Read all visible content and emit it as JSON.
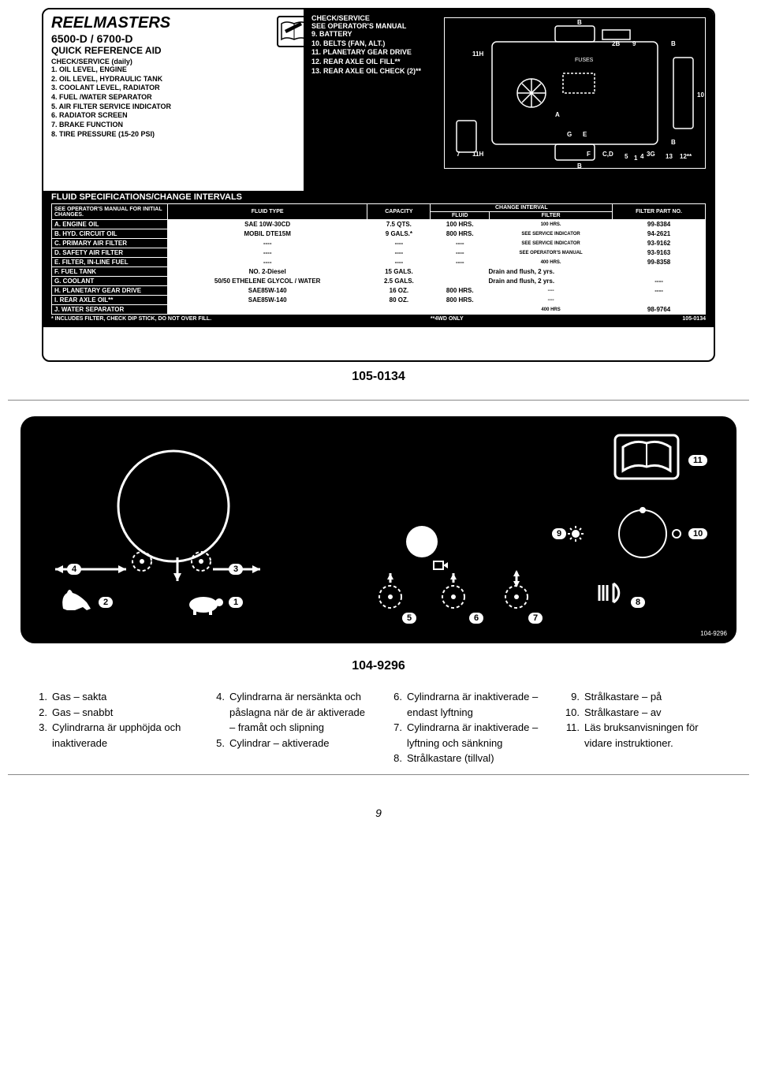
{
  "decal1": {
    "title": "REELMASTERS",
    "model": "6500-D / 6700-D",
    "subtitle": "QUICK REFERENCE AID",
    "daily_title": "CHECK/SERVICE (daily)",
    "daily": [
      "1. OIL LEVEL, ENGINE",
      "2. OIL LEVEL, HYDRAULIC TANK",
      "3. COOLANT LEVEL, RADIATOR",
      "4. FUEL /WATER SEPARATOR",
      "5. AIR FILTER SERVICE INDICATOR",
      "6. RADIATOR SCREEN",
      "7. BRAKE FUNCTION",
      "8. TIRE PRESSURE (15-20 PSI)"
    ],
    "service_title": "CHECK/SERVICE",
    "service_sub": "SEE OPERATOR'S MANUAL",
    "service": [
      "9. BATTERY",
      "10. BELTS (FAN, ALT.)",
      "11. PLANETARY GEAR DRIVE",
      "12. REAR AXLE OIL FILL**",
      "13. REAR AXLE OIL CHECK (2)**"
    ],
    "fluid_title": "FLUID SPECIFICATIONS/CHANGE INTERVALS",
    "headers": {
      "c0": "SEE OPERATOR'S MANUAL FOR INITIAL CHANGES.",
      "c1": "FLUID TYPE",
      "c2": "CAPACITY",
      "c3": "CHANGE INTERVAL",
      "c3a": "FLUID",
      "c3b": "FILTER",
      "c4": "FILTER PART NO."
    },
    "rows": [
      {
        "l": "A. ENGINE OIL",
        "t": "SAE 10W-30CD",
        "c": "7.5 QTS.",
        "f": "100 HRS.",
        "fi": "100 HRS.",
        "p": "99-8384"
      },
      {
        "l": "B. HYD. CIRCUIT OIL",
        "t": "MOBIL DTE15M",
        "c": "9 GALS.*",
        "f": "800 HRS.",
        "fi": "SEE SERVICE INDICATOR",
        "p": "94-2621"
      },
      {
        "l": "C. PRIMARY AIR FILTER",
        "t": "----",
        "c": "----",
        "f": "----",
        "fi": "SEE SERVICE INDICATOR",
        "p": "93-9162"
      },
      {
        "l": "D. SAFETY AIR FILTER",
        "t": "----",
        "c": "----",
        "f": "----",
        "fi": "SEE OPERATOR'S MANUAL",
        "p": "93-9163"
      },
      {
        "l": "E. FILTER, IN-LINE FUEL",
        "t": "----",
        "c": "----",
        "f": "----",
        "fi": "400 HRS.",
        "p": "99-8358"
      },
      {
        "l": "F. FUEL TANK",
        "t": "NO. 2-Diesel",
        "c": "15 GALS.",
        "span": "Drain and flush, 2 yrs.",
        "p": ""
      },
      {
        "l": "G. COOLANT",
        "t": "50/50 ETHELENE GLYCOL / WATER",
        "c": "2.5 GALS.",
        "span": "Drain and flush, 2 yrs.",
        "p": "----"
      },
      {
        "l": "H. PLANETARY GEAR DRIVE",
        "t": "SAE85W-140",
        "c": "16 OZ.",
        "f": "800 HRS.",
        "fi": "----",
        "p": "----"
      },
      {
        "l": "I. REAR AXLE OIL**",
        "t": "SAE85W-140",
        "c": "80 OZ.",
        "f": "800 HRS.",
        "fi": "----",
        "p": ""
      },
      {
        "l": "J. WATER SEPARATOR",
        "t": "",
        "c": "",
        "f": "",
        "fi": "400 HRS",
        "p": "98-9764"
      }
    ],
    "footnote_left": "* INCLUDES FILTER, CHECK DIP STICK, DO NOT OVER FILL.",
    "footnote_mid": "**4WD ONLY",
    "footnote_right": "105-0134",
    "caption": "105-0134"
  },
  "decal2": {
    "caption": "104-9296",
    "partnum": "104-9296",
    "labels": {
      "1": "1",
      "2": "2",
      "3": "3",
      "4": "4",
      "5": "5",
      "6": "6",
      "7": "7",
      "8": "8",
      "9": "9",
      "10": "10",
      "11": "11"
    }
  },
  "legend": {
    "items": [
      {
        "n": "1.",
        "t": "Gas – sakta"
      },
      {
        "n": "2.",
        "t": "Gas – snabbt"
      },
      {
        "n": "3.",
        "t": "Cylindrarna är upphöjda och inaktiverade"
      },
      {
        "n": "4.",
        "t": "Cylindrarna är nersänkta och påslagna när de är aktiverade – framåt och slipning"
      },
      {
        "n": "5.",
        "t": "Cylindrar – aktiverade"
      },
      {
        "n": "6.",
        "t": "Cylindrarna är inaktiverade – endast lyftning"
      },
      {
        "n": "7.",
        "t": "Cylindrarna är inaktiverade – lyftning och sänkning"
      },
      {
        "n": "8.",
        "t": "Strålkastare (tillval)"
      },
      {
        "n": "9.",
        "t": "Strålkastare – på"
      },
      {
        "n": "10.",
        "t": "Strålkastare – av"
      },
      {
        "n": "11.",
        "t": "Läs bruksanvisningen för vidare instruktioner."
      }
    ]
  },
  "pagenum": "9"
}
